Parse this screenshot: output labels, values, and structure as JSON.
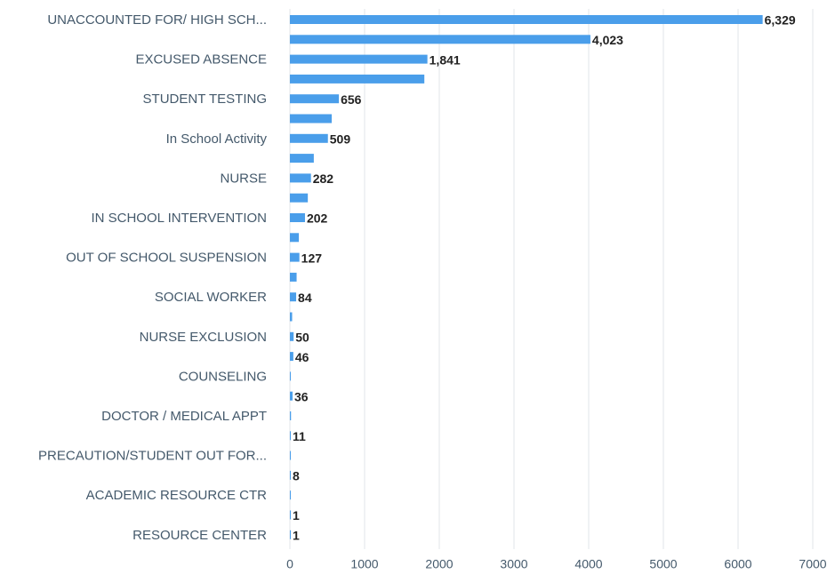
{
  "chart_data": {
    "type": "hbar",
    "categories": [
      "UNACCOUNTED FOR/ HIGH SCH...",
      null,
      "EXCUSED ABSENCE",
      null,
      "STUDENT TESTING",
      null,
      "In School Activity",
      null,
      "NURSE",
      null,
      "IN SCHOOL INTERVENTION",
      null,
      "OUT OF SCHOOL SUSPENSION",
      null,
      "SOCIAL WORKER",
      null,
      "NURSE EXCLUSION",
      null,
      "COUNSELING",
      null,
      "DOCTOR / MEDICAL APPT",
      null,
      "PRECAUTION/STUDENT OUT FOR...",
      null,
      "ACADEMIC RESOURCE CTR",
      null,
      "RESOURCE CENTER"
    ],
    "values": [
      6329,
      4023,
      1841,
      1800,
      656,
      560,
      509,
      320,
      282,
      240,
      202,
      120,
      127,
      90,
      84,
      30,
      50,
      46,
      10,
      36,
      15,
      11,
      0,
      8,
      0,
      1,
      1
    ],
    "value_labels": [
      "6,329",
      "4,023",
      "1,841",
      null,
      "656",
      null,
      "509",
      null,
      "282",
      null,
      "202",
      null,
      "127",
      null,
      "84",
      null,
      "50",
      "46",
      null,
      "36",
      null,
      "11",
      null,
      "8",
      null,
      "1",
      "1"
    ],
    "color": "#4a9eea",
    "xlim": [
      0,
      7000
    ],
    "xticks": [
      0,
      1000,
      2000,
      3000,
      4000,
      5000,
      6000,
      7000
    ],
    "grid": true
  }
}
